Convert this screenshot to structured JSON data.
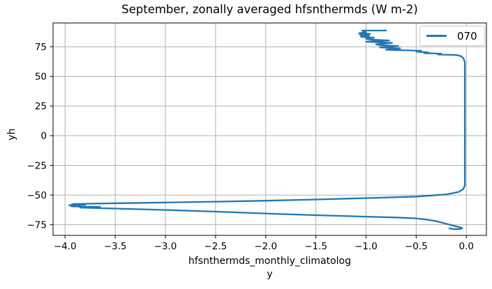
{
  "chart_data": {
    "type": "line",
    "title": "September, zonally averaged hfsnthermds (W m-2)",
    "xlabel_line1": "hfsnthermds_monthly_climatolog",
    "xlabel_line2": "y",
    "ylabel": "yh",
    "xlim": [
      -4.12,
      0.2
    ],
    "ylim": [
      -84,
      95
    ],
    "grid": true,
    "grid_color": "#b0b0b0",
    "axis_color": "#000000",
    "background_color": "#ffffff",
    "xticks": [
      {
        "value": -4.0,
        "label": "−4.0"
      },
      {
        "value": -3.5,
        "label": "−3.5"
      },
      {
        "value": -3.0,
        "label": "−3.0"
      },
      {
        "value": -2.5,
        "label": "−2.5"
      },
      {
        "value": -2.0,
        "label": "−2.0"
      },
      {
        "value": -1.5,
        "label": "−1.5"
      },
      {
        "value": -1.0,
        "label": "−1.0"
      },
      {
        "value": -0.5,
        "label": "−0.5"
      },
      {
        "value": 0.0,
        "label": "0.0"
      }
    ],
    "yticks": [
      {
        "value": -75,
        "label": "−75"
      },
      {
        "value": -50,
        "label": "−50"
      },
      {
        "value": -25,
        "label": "−25"
      },
      {
        "value": 0,
        "label": "0"
      },
      {
        "value": 25,
        "label": "25"
      },
      {
        "value": 50,
        "label": "50"
      },
      {
        "value": 75,
        "label": "75"
      }
    ],
    "legend": {
      "position": "upper right",
      "entries": [
        {
          "label": "070",
          "color": "#1f77b4"
        }
      ]
    },
    "series": [
      {
        "name": "070",
        "color": "#1f77b4",
        "points": [
          [
            -0.8,
            88.6
          ],
          [
            -1.04,
            88.6
          ],
          [
            -1.0,
            87.2
          ],
          [
            -1.07,
            86.3
          ],
          [
            -0.96,
            85.8
          ],
          [
            -1.06,
            84.8
          ],
          [
            -0.97,
            84.3
          ],
          [
            -1.05,
            83.3
          ],
          [
            -0.92,
            82.6
          ],
          [
            -1.0,
            81.6
          ],
          [
            -0.95,
            81.0
          ],
          [
            -0.77,
            80.2
          ],
          [
            -1.0,
            79.2
          ],
          [
            -0.74,
            78.2
          ],
          [
            -0.9,
            77.0
          ],
          [
            -0.85,
            76.2
          ],
          [
            -0.68,
            75.6
          ],
          [
            -0.86,
            74.4
          ],
          [
            -0.66,
            73.6
          ],
          [
            -0.8,
            72.4
          ],
          [
            -0.45,
            71.6
          ],
          [
            -0.5,
            70.8
          ],
          [
            -0.38,
            70.2
          ],
          [
            -0.42,
            69.6
          ],
          [
            -0.25,
            69.2
          ],
          [
            -0.28,
            68.4
          ],
          [
            -0.1,
            68.0
          ],
          [
            -0.06,
            67.3
          ],
          [
            -0.03,
            65.5
          ],
          [
            -0.015,
            62.0
          ],
          [
            -0.015,
            -42.0
          ],
          [
            -0.03,
            -45.0
          ],
          [
            -0.08,
            -47.5
          ],
          [
            -0.2,
            -49.5
          ],
          [
            -0.5,
            -51.3
          ],
          [
            -1.0,
            -52.6
          ],
          [
            -1.5,
            -53.8
          ],
          [
            -2.0,
            -54.8
          ],
          [
            -2.5,
            -55.6
          ],
          [
            -3.0,
            -56.3
          ],
          [
            -3.4,
            -56.8
          ],
          [
            -3.7,
            -57.2
          ],
          [
            -3.93,
            -57.6
          ],
          [
            -3.8,
            -58.1
          ],
          [
            -3.96,
            -58.6
          ],
          [
            -3.85,
            -59.0
          ],
          [
            -3.94,
            -59.5
          ],
          [
            -3.65,
            -60.0
          ],
          [
            -3.85,
            -60.6
          ],
          [
            -3.5,
            -61.4
          ],
          [
            -3.0,
            -62.6
          ],
          [
            -2.5,
            -64.0
          ],
          [
            -2.0,
            -65.6
          ],
          [
            -1.5,
            -67.0
          ],
          [
            -1.0,
            -68.2
          ],
          [
            -0.7,
            -68.9
          ],
          [
            -0.5,
            -69.7
          ],
          [
            -0.4,
            -70.6
          ],
          [
            -0.3,
            -72.0
          ],
          [
            -0.22,
            -73.8
          ],
          [
            -0.14,
            -75.6
          ],
          [
            -0.07,
            -77.0
          ],
          [
            -0.04,
            -77.9
          ],
          [
            -0.06,
            -78.6
          ],
          [
            -0.13,
            -78.7
          ],
          [
            -0.17,
            -78.1
          ]
        ]
      }
    ]
  }
}
